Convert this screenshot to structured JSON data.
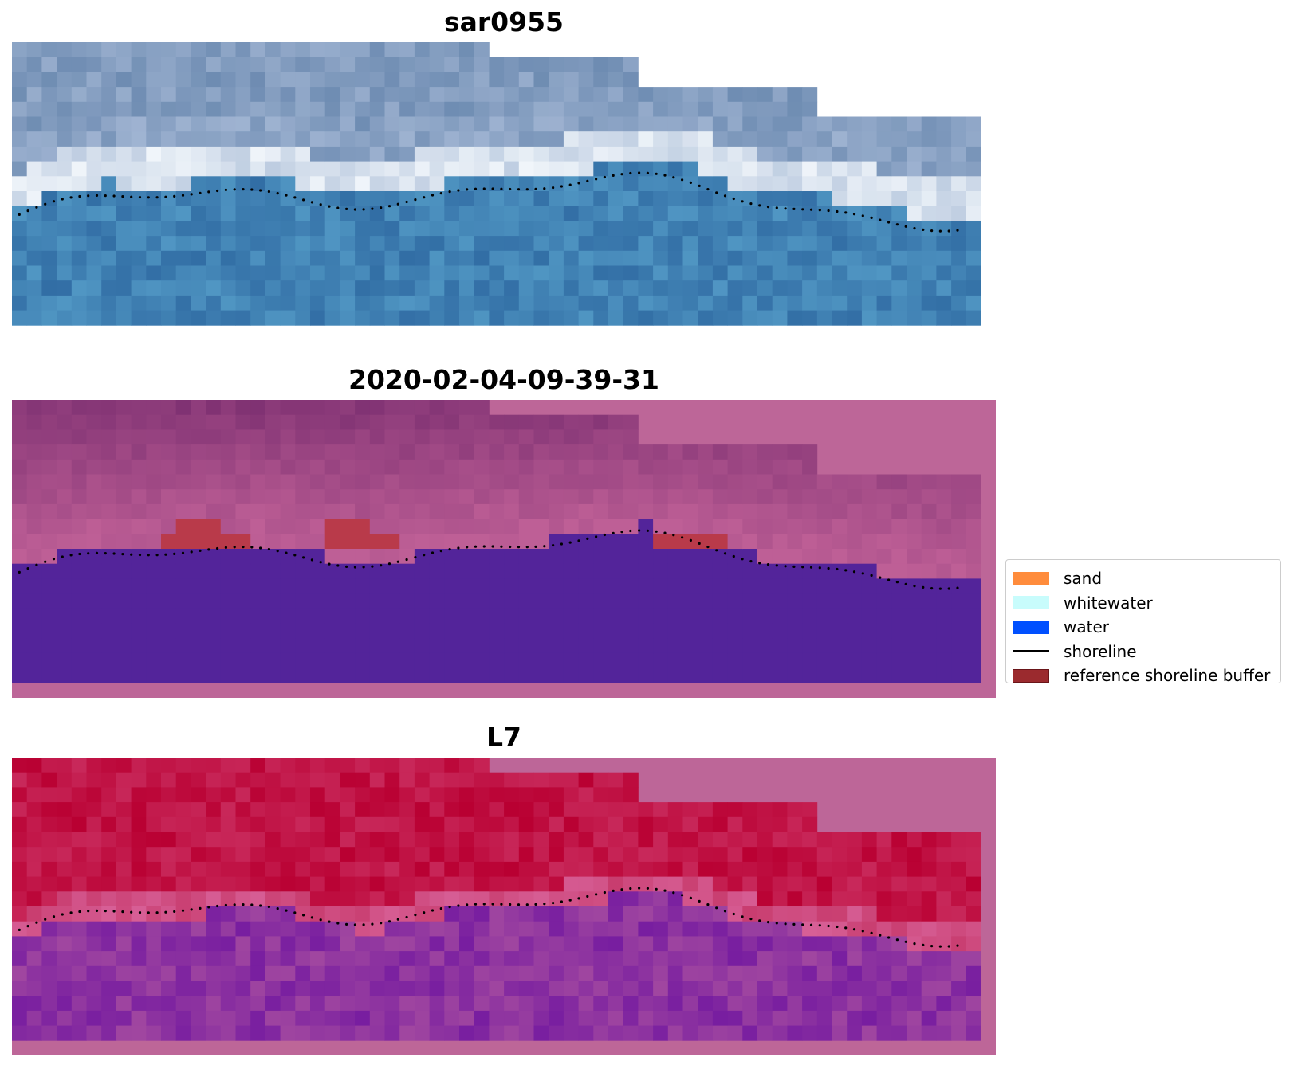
{
  "panels": [
    {
      "title": "sar0955",
      "style": "rgb"
    },
    {
      "title": "2020-02-04-09-39-31",
      "style": "classified"
    },
    {
      "title": "L7",
      "style": "index"
    }
  ],
  "legend": {
    "items": [
      {
        "label": "sand",
        "color": "#ff8c3c",
        "kind": "patch"
      },
      {
        "label": "whitewater",
        "color": "#c8fcfc",
        "kind": "patch"
      },
      {
        "label": "water",
        "color": "#0050ff",
        "kind": "patch"
      },
      {
        "label": "shoreline",
        "color": "#000000",
        "kind": "line"
      },
      {
        "label": "reference shoreline buffer",
        "color": "#9b2a2e",
        "kind": "patch"
      }
    ]
  },
  "colors": {
    "background_fill": "#bd6698",
    "water_class": "#53249a",
    "buffer_overlay": "#b93a4a"
  }
}
